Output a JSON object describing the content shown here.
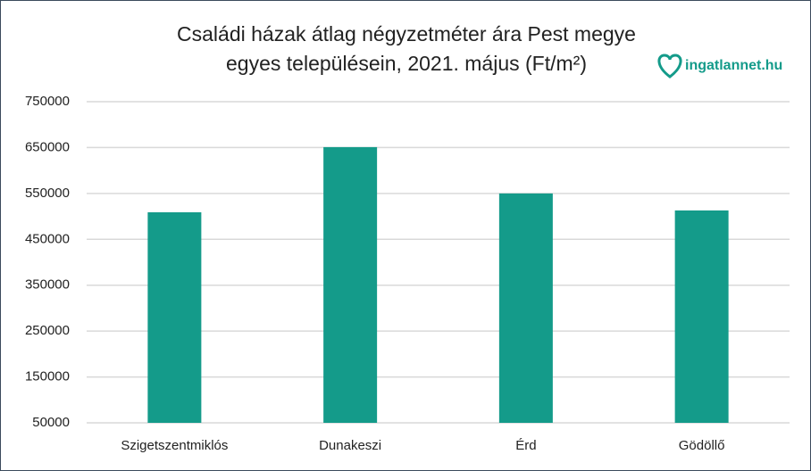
{
  "chart_data": {
    "type": "bar",
    "title": [
      "Családi házak átlag négyzetméter ára Pest megye",
      "egyes településein, 2021. május (Ft/m²)"
    ],
    "logo": "ingatlannet.hu",
    "categories": [
      "Szigetszentmiklós",
      "Dunakeszi",
      "Érd",
      "Gödöllő"
    ],
    "values": [
      509000,
      651000,
      550000,
      513000
    ],
    "color": "#149b8a",
    "ylim": [
      50000,
      750000
    ],
    "yticks": [
      50000,
      150000,
      250000,
      350000,
      450000,
      550000,
      650000,
      750000
    ],
    "grid": true
  }
}
